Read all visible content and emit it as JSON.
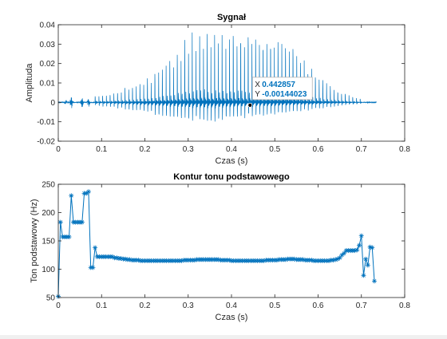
{
  "figure": {
    "background": "#ffffff"
  },
  "style": {
    "line_color": "#0072bd",
    "axis_color": "#262626",
    "datatip_value_color": "#0072bd"
  },
  "chart_data": [
    {
      "type": "line",
      "title": "Sygnał",
      "xlabel": "Czas (s)",
      "ylabel": "Amplituda",
      "xlim": [
        0,
        0.8
      ],
      "ylim": [
        -0.02,
        0.04
      ],
      "xticks": [
        0,
        0.1,
        0.2,
        0.3,
        0.4,
        0.5,
        0.6,
        0.7,
        0.8
      ],
      "yticks": [
        -0.02,
        -0.01,
        0,
        0.01,
        0.02,
        0.03,
        0.04
      ],
      "xtick_labels": [
        "0",
        "0.1",
        "0.2",
        "0.3",
        "0.4",
        "0.5",
        "0.6",
        "0.7",
        "0.8"
      ],
      "ytick_labels": [
        "-0.02",
        "-0.01",
        "0",
        "0.01",
        "0.02",
        "0.03",
        "0.04"
      ],
      "grid": false,
      "signal": {
        "duration": 0.735,
        "voiced_start": 0.085,
        "voiced_end": 0.705,
        "pitch_hz": 116,
        "envelope_pos": [
          [
            0.085,
            0.003
          ],
          [
            0.12,
            0.004
          ],
          [
            0.15,
            0.006
          ],
          [
            0.2,
            0.01
          ],
          [
            0.25,
            0.018
          ],
          [
            0.3,
            0.029
          ],
          [
            0.33,
            0.034
          ],
          [
            0.36,
            0.031
          ],
          [
            0.4,
            0.032
          ],
          [
            0.45,
            0.029
          ],
          [
            0.5,
            0.027
          ],
          [
            0.53,
            0.026
          ],
          [
            0.57,
            0.018
          ],
          [
            0.6,
            0.012
          ],
          [
            0.63,
            0.007
          ],
          [
            0.66,
            0.004
          ],
          [
            0.705,
            0.001
          ]
        ],
        "envelope_neg": [
          [
            0.085,
            -0.003
          ],
          [
            0.12,
            -0.004
          ],
          [
            0.15,
            -0.006
          ],
          [
            0.2,
            -0.009
          ],
          [
            0.25,
            -0.013
          ],
          [
            0.3,
            -0.017
          ],
          [
            0.35,
            -0.018
          ],
          [
            0.4,
            -0.015
          ],
          [
            0.45,
            -0.013
          ],
          [
            0.5,
            -0.012
          ],
          [
            0.55,
            -0.009
          ],
          [
            0.6,
            -0.006
          ],
          [
            0.65,
            -0.003
          ],
          [
            0.705,
            -0.001
          ]
        ],
        "bursts": [
          [
            0.018,
            0.0015
          ],
          [
            0.03,
            0.004
          ],
          [
            0.055,
            0.003
          ],
          [
            0.07,
            0.0025
          ]
        ]
      },
      "datatip": {
        "x": 0.442857,
        "y": -0.00144023,
        "x_label": "X",
        "y_label": "Y",
        "x_text": "0.442857",
        "y_text": "-0.00144023"
      }
    },
    {
      "type": "line",
      "title": "Kontur tonu podstawowego",
      "xlabel": "Czas (s)",
      "ylabel": "Ton podstawowy (Hz)",
      "xlim": [
        0,
        0.8
      ],
      "ylim": [
        50,
        250
      ],
      "xticks": [
        0,
        0.1,
        0.2,
        0.3,
        0.4,
        0.5,
        0.6,
        0.7,
        0.8
      ],
      "yticks": [
        50,
        100,
        150,
        200,
        250
      ],
      "xtick_labels": [
        "0",
        "0.1",
        "0.2",
        "0.3",
        "0.4",
        "0.5",
        "0.6",
        "0.7",
        "0.8"
      ],
      "ytick_labels": [
        "50",
        "100",
        "150",
        "200",
        "250"
      ],
      "grid": false,
      "marker": "*",
      "x": [
        0,
        0.005,
        0.01,
        0.015,
        0.02,
        0.025,
        0.03,
        0.035,
        0.04,
        0.045,
        0.05,
        0.055,
        0.06,
        0.065,
        0.07,
        0.075,
        0.08,
        0.085,
        0.09,
        0.095,
        0.1,
        0.105,
        0.11,
        0.115,
        0.12,
        0.125,
        0.13,
        0.135,
        0.14,
        0.145,
        0.15,
        0.155,
        0.16,
        0.165,
        0.17,
        0.175,
        0.18,
        0.185,
        0.19,
        0.195,
        0.2,
        0.205,
        0.21,
        0.215,
        0.22,
        0.225,
        0.23,
        0.235,
        0.24,
        0.245,
        0.25,
        0.255,
        0.26,
        0.265,
        0.27,
        0.275,
        0.28,
        0.285,
        0.29,
        0.295,
        0.3,
        0.305,
        0.31,
        0.315,
        0.32,
        0.325,
        0.33,
        0.335,
        0.34,
        0.345,
        0.35,
        0.355,
        0.36,
        0.365,
        0.37,
        0.375,
        0.38,
        0.385,
        0.39,
        0.395,
        0.4,
        0.405,
        0.41,
        0.415,
        0.42,
        0.425,
        0.43,
        0.435,
        0.44,
        0.445,
        0.45,
        0.455,
        0.46,
        0.465,
        0.47,
        0.475,
        0.48,
        0.485,
        0.49,
        0.495,
        0.5,
        0.505,
        0.51,
        0.515,
        0.52,
        0.525,
        0.53,
        0.535,
        0.54,
        0.545,
        0.55,
        0.555,
        0.56,
        0.565,
        0.57,
        0.575,
        0.58,
        0.585,
        0.59,
        0.595,
        0.6,
        0.605,
        0.61,
        0.615,
        0.62,
        0.625,
        0.63,
        0.635,
        0.64,
        0.645,
        0.65,
        0.655,
        0.66,
        0.665,
        0.67,
        0.675,
        0.68,
        0.685,
        0.69,
        0.695,
        0.7,
        0.705,
        0.71,
        0.715,
        0.72,
        0.725,
        0.73
      ],
      "y": [
        52,
        183,
        157,
        157,
        157,
        157,
        230,
        183,
        183,
        183,
        183,
        183,
        234,
        234,
        237,
        103,
        103,
        138,
        122,
        122,
        122,
        122,
        122,
        122,
        122,
        122,
        120,
        120,
        119,
        119,
        118,
        118,
        117,
        117,
        116,
        116,
        116,
        116,
        115,
        115,
        115,
        115,
        115,
        115,
        115,
        115,
        115,
        115,
        115,
        115,
        115,
        115,
        115,
        115,
        115,
        115,
        115,
        115,
        116,
        116,
        116,
        116,
        116,
        116,
        117,
        117,
        117,
        117,
        117,
        117,
        117,
        117,
        117,
        117,
        117,
        116,
        116,
        116,
        116,
        116,
        115,
        115,
        115,
        115,
        115,
        115,
        115,
        115,
        115,
        115,
        115,
        115,
        115,
        115,
        115,
        115,
        116,
        116,
        116,
        116,
        116,
        116,
        117,
        117,
        117,
        117,
        118,
        118,
        118,
        118,
        117,
        117,
        117,
        117,
        116,
        116,
        116,
        116,
        115,
        115,
        115,
        115,
        115,
        115,
        115,
        115,
        116,
        116,
        117,
        118,
        120,
        125,
        128,
        133,
        133,
        133,
        133,
        133,
        134,
        142,
        159,
        89,
        118,
        107,
        139,
        138,
        79
      ]
    }
  ]
}
